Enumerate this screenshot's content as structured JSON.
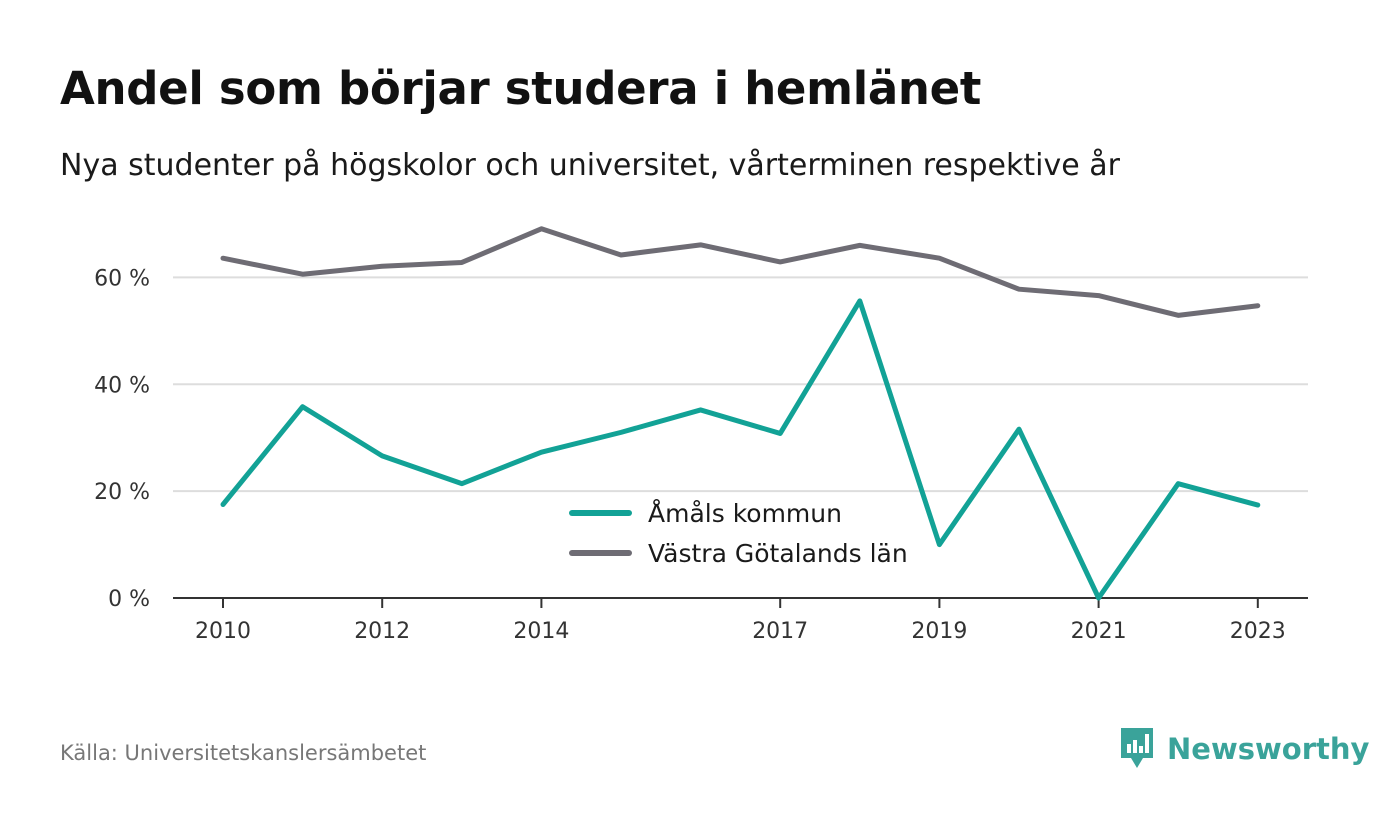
{
  "title": "Andel som börjar studera i hemlänet",
  "subtitle": "Nya studenter på högskolor och universitet, vårterminen respektive år",
  "source": "Källa: Universitetskanslersämbetet",
  "brand": {
    "name": "Newsworthy",
    "color": "#3aa39a",
    "logo_icon": "bar-chart-speech-bubble-icon"
  },
  "chart_data": {
    "type": "line",
    "x": [
      2010,
      2011,
      2012,
      2013,
      2014,
      2015,
      2016,
      2017,
      2018,
      2019,
      2020,
      2021,
      2022,
      2023
    ],
    "x_tick_labels": [
      "2010",
      "2012",
      "2014",
      "2017",
      "2019",
      "2021",
      "2023"
    ],
    "y_tick_labels": [
      "0 %",
      "20 %",
      "40 %",
      "60 %"
    ],
    "y_ticks": [
      0,
      20,
      40,
      60
    ],
    "ylim": [
      0,
      70
    ],
    "grid": true,
    "legend_position": "center",
    "series": [
      {
        "name": "Åmåls kommun",
        "color": "#12a296",
        "values": [
          17.5,
          35.8,
          26.6,
          21.4,
          27.3,
          31.0,
          35.2,
          30.8,
          55.6,
          10.0,
          31.6,
          0.0,
          21.4,
          17.4
        ]
      },
      {
        "name": "Västra Götalands län",
        "color": "#6e6c74",
        "values": [
          63.6,
          60.6,
          62.1,
          62.8,
          69.1,
          64.2,
          66.1,
          62.9,
          66.0,
          63.6,
          57.8,
          56.6,
          52.9,
          54.7
        ]
      }
    ]
  }
}
